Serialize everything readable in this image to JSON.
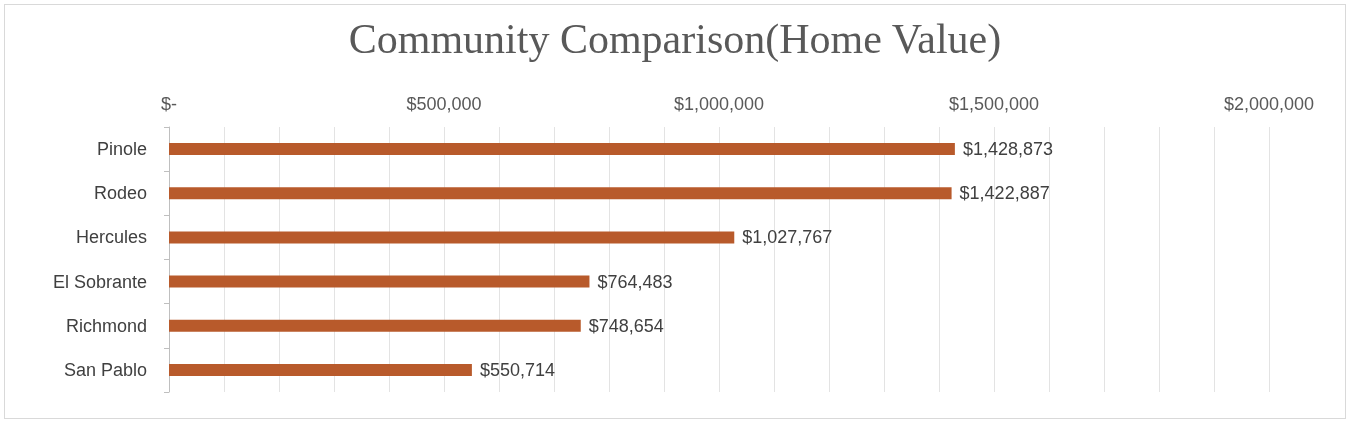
{
  "chart_data": {
    "type": "bar",
    "orientation": "horizontal",
    "title": "Community Comparison(Home Value)",
    "categories": [
      "Pinole",
      "Rodeo",
      "Hercules",
      "El Sobrante",
      "Richmond",
      "San Pablo"
    ],
    "values": [
      1428873,
      1422887,
      1027767,
      764483,
      748654,
      550714
    ],
    "value_labels": [
      "$1,428,873",
      "$1,422,887",
      "$1,027,767",
      "$764,483",
      "$748,654",
      "$550,714"
    ],
    "color": "#b85a2b",
    "xlim": [
      0,
      2000000
    ],
    "xticks": [
      {
        "value": 0,
        "label": "$-"
      },
      {
        "value": 100000,
        "label": null
      },
      {
        "value": 200000,
        "label": null
      },
      {
        "value": 300000,
        "label": null
      },
      {
        "value": 400000,
        "label": null
      },
      {
        "value": 500000,
        "label": "$500,000"
      },
      {
        "value": 600000,
        "label": null
      },
      {
        "value": 700000,
        "label": null
      },
      {
        "value": 800000,
        "label": null
      },
      {
        "value": 900000,
        "label": null
      },
      {
        "value": 1000000,
        "label": "$1,000,000"
      },
      {
        "value": 1100000,
        "label": null
      },
      {
        "value": 1200000,
        "label": null
      },
      {
        "value": 1300000,
        "label": null
      },
      {
        "value": 1400000,
        "label": null
      },
      {
        "value": 1500000,
        "label": "$1,500,000"
      },
      {
        "value": 1600000,
        "label": null
      },
      {
        "value": 1700000,
        "label": null
      },
      {
        "value": 1800000,
        "label": null
      },
      {
        "value": 1900000,
        "label": null
      },
      {
        "value": 2000000,
        "label": "$2,000,000"
      }
    ],
    "grid": "x"
  }
}
